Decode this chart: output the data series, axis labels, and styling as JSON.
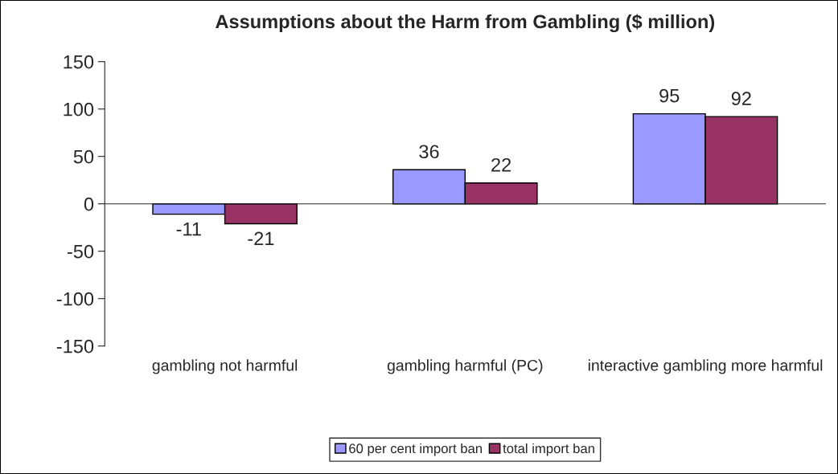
{
  "chart_data": {
    "type": "bar",
    "title": "Assumptions about the Harm from Gambling ($ million)",
    "categories": [
      "gambling not harmful",
      "gambling harmful (PC)",
      "interactive gambling more harmful"
    ],
    "series": [
      {
        "name": "60 per cent import ban",
        "color": "#9999ff",
        "values": [
          -11,
          36,
          95
        ]
      },
      {
        "name": "total import ban",
        "color": "#993366",
        "values": [
          -21,
          22,
          92
        ]
      }
    ],
    "ylim": [
      -150,
      150
    ],
    "yticks": [
      -150,
      -100,
      -50,
      0,
      50,
      100,
      150
    ],
    "data_labels": true,
    "legend": "bottom"
  }
}
